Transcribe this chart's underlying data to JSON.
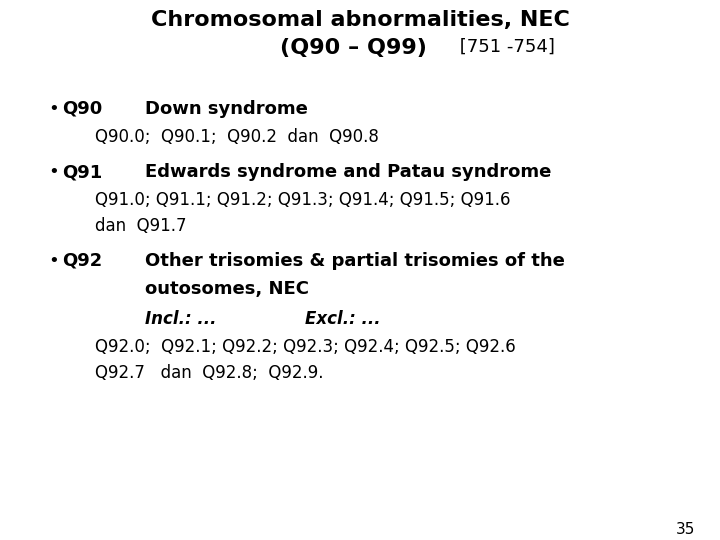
{
  "background_color": "#ffffff",
  "text_color": "#000000",
  "title_line1": "Chromosomal abnormalities, NEC",
  "title_line2_bold": "(Q90 – Q99)",
  "title_line2_normal": " [751 -754]",
  "page_number": "35",
  "figsize": [
    7.2,
    5.4
  ],
  "dpi": 100
}
